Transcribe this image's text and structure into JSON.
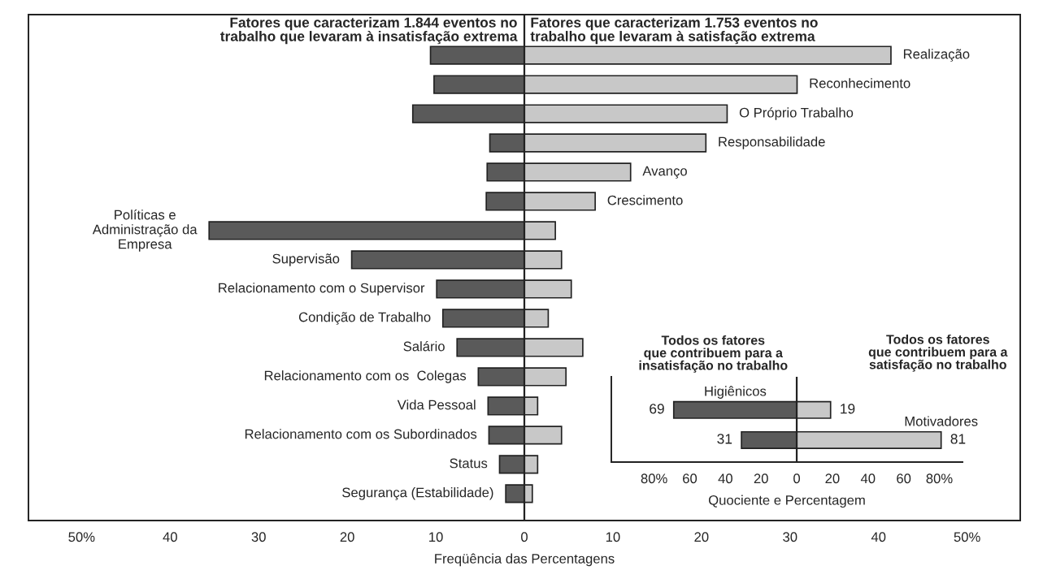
{
  "chart_data": [
    {
      "type": "bar",
      "orientation": "horizontal",
      "stacked": true,
      "categories": [
        "Realização",
        "Reconhecimento",
        "O Próprio Trabalho",
        "Responsabilidade",
        "Avanço",
        "Crescimento",
        "Políticas e\nAdministração da\nEmpresa",
        "Supervisão",
        "Relacionamento com o Supervisor",
        "Condição de Trabalho",
        "Salário",
        "Relacionamento com os  Colegas",
        "Vida Pessoal",
        "Relacionamento com os Subordinados",
        "Status",
        "Segurança (Estabilidade)"
      ],
      "series": [
        {
          "color": "#5a5a5a",
          "values": [
            -10.6,
            -10.2,
            -12.6,
            -3.9,
            -4.2,
            -4.3,
            -35.6,
            -19.5,
            -9.9,
            -9.2,
            -7.6,
            -5.2,
            -4.1,
            -4.0,
            -2.8,
            -2.1
          ]
        },
        {
          "color": "#c8c8c8",
          "values": [
            41.4,
            30.8,
            22.9,
            20.5,
            12.0,
            8.0,
            3.5,
            4.2,
            5.3,
            2.7,
            6.6,
            4.7,
            1.5,
            4.2,
            1.5,
            0.9
          ]
        }
      ],
      "xlim": [
        -56,
        56
      ],
      "xticks": [
        {
          "value": -50,
          "label": "50%"
        },
        {
          "value": -40,
          "label": "40"
        },
        {
          "value": -30,
          "label": "30"
        },
        {
          "value": -20,
          "label": "20"
        },
        {
          "value": -10,
          "label": "10"
        },
        0,
        10,
        20,
        30,
        40,
        {
          "value": 50,
          "label": "50%"
        }
      ],
      "xlabel": "Freqüência das Percentagens",
      "ref_lines": [
        {
          "axis": "x",
          "value": 0,
          "color": "#222222"
        }
      ],
      "annotations": [
        "Fatores que caracterizam 1.844 eventos no\ntrabalho que levaram à insatisfação extrema",
        "Fatores que caracterizam 1.753 eventos no\ntrabalho que levaram à satisfação extrema"
      ],
      "grid": false,
      "legend": false
    },
    {
      "type": "bar",
      "orientation": "horizontal",
      "stacked": true,
      "categories": [
        "Higiênicos",
        "Motivadores"
      ],
      "series": [
        {
          "color": "#5a5a5a",
          "values": [
            -69,
            -31
          ]
        },
        {
          "color": "#c8c8c8",
          "values": [
            19,
            81
          ],
          "value_labels": [
            "19",
            "81"
          ]
        }
      ],
      "xlim": [
        -104,
        93
      ],
      "xticks": [
        {
          "value": -80,
          "label": "80%"
        },
        {
          "value": -60,
          "label": "60"
        },
        {
          "value": -40,
          "label": "40"
        },
        {
          "value": -20,
          "label": "20"
        },
        0,
        20,
        40,
        60,
        {
          "value": 80,
          "label": "80%"
        }
      ],
      "xlabel": "Quociente e Percentagem",
      "ref_lines": [
        {
          "axis": "x",
          "value": 0,
          "color": "#222222"
        }
      ],
      "annotations": [
        "Todos os fatores\nque contribuem para a\ninsatisfação no trabalho",
        "Todos os fatores\nque contribuem para a\nsatisfação no trabalho",
        {
          "text": "69",
          "x": -69,
          "y": "Higiênicos"
        },
        {
          "text": "31",
          "x": -31,
          "y": "Motivadores"
        }
      ],
      "grid": false,
      "legend": false
    }
  ]
}
